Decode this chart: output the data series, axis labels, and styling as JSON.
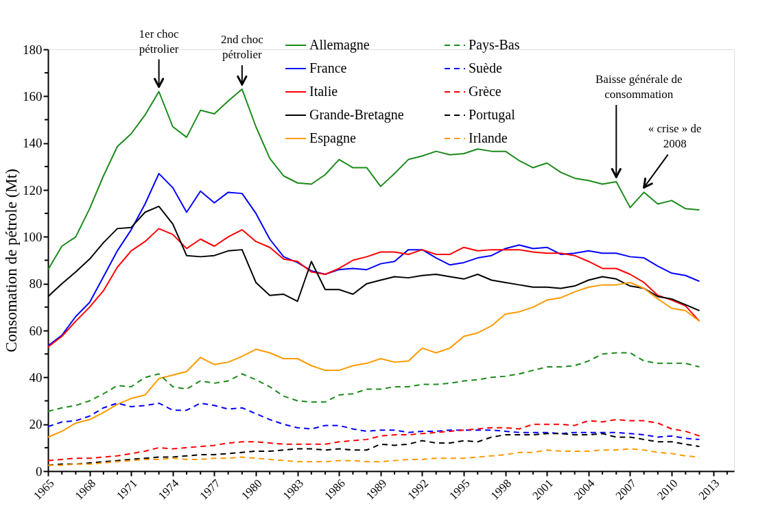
{
  "chart_data": {
    "type": "line",
    "ylabel": "Consomation de pétrole (Mt)",
    "legend": "top",
    "grid": false,
    "x": [
      1965,
      1966,
      1967,
      1968,
      1969,
      1970,
      1971,
      1972,
      1973,
      1974,
      1975,
      1976,
      1977,
      1978,
      1979,
      1980,
      1981,
      1982,
      1983,
      1984,
      1985,
      1986,
      1987,
      1988,
      1989,
      1990,
      1991,
      1992,
      1993,
      1994,
      1995,
      1996,
      1997,
      1998,
      1999,
      2000,
      2001,
      2002,
      2003,
      2004,
      2005,
      2006,
      2007,
      2008,
      2009,
      2010,
      2011,
      2012
    ],
    "xlim": [
      1965,
      2014.5
    ],
    "xticks": [
      1965,
      {
        "value": 1966,
        "label": null
      },
      {
        "value": 1967,
        "label": null
      },
      1968,
      {
        "value": 1969,
        "label": null
      },
      {
        "value": 1970,
        "label": null
      },
      1971,
      {
        "value": 1972,
        "label": null
      },
      {
        "value": 1973,
        "label": null
      },
      1974,
      {
        "value": 1975,
        "label": null
      },
      {
        "value": 1976,
        "label": null
      },
      1977,
      {
        "value": 1978,
        "label": null
      },
      {
        "value": 1979,
        "label": null
      },
      1980,
      {
        "value": 1981,
        "label": null
      },
      {
        "value": 1982,
        "label": null
      },
      1983,
      {
        "value": 1984,
        "label": null
      },
      {
        "value": 1985,
        "label": null
      },
      1986,
      {
        "value": 1987,
        "label": null
      },
      {
        "value": 1988,
        "label": null
      },
      1989,
      {
        "value": 1990,
        "label": null
      },
      {
        "value": 1991,
        "label": null
      },
      1992,
      {
        "value": 1993,
        "label": null
      },
      {
        "value": 1994,
        "label": null
      },
      1995,
      {
        "value": 1996,
        "label": null
      },
      {
        "value": 1997,
        "label": null
      },
      1998,
      {
        "value": 1999,
        "label": null
      },
      {
        "value": 2000,
        "label": null
      },
      2001,
      {
        "value": 2002,
        "label": null
      },
      {
        "value": 2003,
        "label": null
      },
      2004,
      {
        "value": 2005,
        "label": null
      },
      {
        "value": 2006,
        "label": null
      },
      2007,
      {
        "value": 2008,
        "label": null
      },
      {
        "value": 2009,
        "label": null
      },
      2010,
      {
        "value": 2011,
        "label": null
      },
      {
        "value": 2012,
        "label": null
      },
      2013,
      {
        "value": 2014,
        "label": null
      }
    ],
    "ylim": [
      0,
      180
    ],
    "yticks": [
      0,
      {
        "value": 10,
        "label": null
      },
      20,
      {
        "value": 30,
        "label": null
      },
      40,
      {
        "value": 50,
        "label": null
      },
      60,
      {
        "value": 70,
        "label": null
      },
      80,
      {
        "value": 90,
        "label": null
      },
      100,
      {
        "value": 110,
        "label": null
      },
      120,
      {
        "value": 130,
        "label": null
      },
      140,
      {
        "value": 150,
        "label": null
      },
      160,
      {
        "value": 170,
        "label": null
      },
      180
    ],
    "series": [
      {
        "name": "Allemagne",
        "color": "#1a8a1a",
        "line_style": "solid",
        "values": [
          86,
          96,
          100,
          112,
          126,
          138.5,
          144,
          152,
          162,
          147,
          142.5,
          154,
          152.5,
          158,
          163,
          147,
          133.5,
          126,
          123,
          122.5,
          126.5,
          133,
          129.5,
          129.5,
          121.5,
          127,
          133,
          134.5,
          136.5,
          135,
          135.5,
          137.5,
          136.5,
          136.5,
          132.5,
          129.5,
          131.5,
          127.5,
          125,
          124,
          122.5,
          123.5,
          112.5,
          119,
          114,
          115.5,
          112,
          111.5
        ]
      },
      {
        "name": "France",
        "color": "#0000ff",
        "line_style": "solid",
        "values": [
          53.5,
          58,
          66,
          72,
          83,
          94,
          103,
          114,
          127,
          121,
          110.5,
          119.5,
          114.5,
          119,
          118.5,
          110,
          99,
          91.5,
          89,
          85.5,
          84,
          86,
          86.5,
          86,
          88.5,
          89.5,
          94.5,
          94.5,
          91,
          88,
          89,
          91,
          92,
          95,
          96.5,
          95,
          95.5,
          92.5,
          93,
          94,
          93,
          93,
          91.5,
          91,
          87.5,
          84.5,
          83.5,
          81
        ]
      },
      {
        "name": "Italie",
        "color": "#ff0000",
        "line_style": "solid",
        "values": [
          53,
          57.5,
          64,
          70,
          77,
          87,
          94,
          98,
          103.5,
          101,
          95,
          99,
          96,
          100,
          103,
          98,
          95.5,
          90.5,
          89.5,
          85,
          84,
          86.5,
          90,
          91.5,
          93.5,
          93.5,
          92.5,
          94.5,
          92.5,
          92.5,
          95.5,
          94,
          94.5,
          94.5,
          94.5,
          93.5,
          93,
          93,
          92,
          89.5,
          86.5,
          86.5,
          84,
          80.5,
          75,
          73,
          70.5,
          64
        ]
      },
      {
        "name": "Grande-Bretagne",
        "color": "#000000",
        "line_style": "solid",
        "values": [
          74.5,
          80,
          85,
          90.5,
          97.5,
          103.5,
          104,
          110.5,
          113,
          105.5,
          92,
          91.5,
          92,
          94,
          94.5,
          80.5,
          75,
          75.5,
          72.5,
          89.5,
          77.5,
          77.5,
          75.5,
          80,
          81.5,
          83,
          82.5,
          83.5,
          84,
          83,
          82,
          84,
          81.5,
          80.5,
          79.5,
          78.5,
          78.5,
          78,
          79,
          81.5,
          83,
          82,
          79,
          78,
          74.5,
          73.5,
          71,
          68.5
        ]
      },
      {
        "name": "Espagne",
        "color": "#ff9900",
        "line_style": "solid",
        "values": [
          14.5,
          17,
          20.5,
          22,
          25,
          28.5,
          31,
          32.5,
          39.5,
          41,
          42.5,
          48.5,
          45.5,
          46.5,
          49,
          52,
          50.5,
          48,
          48,
          45,
          43,
          43,
          45,
          46,
          48,
          46.5,
          47,
          52.5,
          50.5,
          52.5,
          57.5,
          59,
          62,
          67,
          68,
          70,
          73,
          74,
          76.5,
          78.5,
          79.5,
          79.5,
          80.5,
          78,
          73.5,
          69.5,
          68.5,
          64
        ]
      },
      {
        "name": "Pays-Bas",
        "color": "#1a8a1a",
        "line_style": "dashed",
        "values": [
          25.5,
          27,
          28,
          30,
          33,
          36.5,
          36,
          40,
          41.5,
          36,
          35,
          38.5,
          37.5,
          38.5,
          41.5,
          39,
          36,
          32,
          30,
          29.5,
          29.5,
          32.5,
          33,
          35,
          35,
          36,
          36,
          37,
          37,
          37.5,
          38.5,
          39,
          40,
          40.5,
          41.5,
          43,
          44.5,
          44.5,
          45,
          47,
          50,
          50.5,
          50.5,
          47,
          46,
          46,
          46,
          44.5
        ]
      },
      {
        "name": "Suède",
        "color": "#0000ff",
        "line_style": "dashed",
        "values": [
          19,
          21,
          21.5,
          23.5,
          27,
          29,
          27.5,
          28,
          29,
          26,
          26,
          29,
          28,
          26.5,
          27,
          24.5,
          22,
          20,
          18.5,
          18,
          19.5,
          19.5,
          18,
          17,
          17.5,
          17.5,
          16.5,
          17,
          17,
          17.5,
          17.5,
          17.5,
          17.5,
          17,
          16.5,
          16.5,
          16.5,
          16,
          16.5,
          16.5,
          16.5,
          16.5,
          16,
          15.5,
          14.5,
          15,
          14,
          13.5
        ]
      },
      {
        "name": "Grèce",
        "color": "#ff0000",
        "line_style": "dashed",
        "values": [
          4.5,
          5,
          5.5,
          5.5,
          6,
          6.5,
          7.5,
          8.5,
          10,
          9.5,
          10,
          10.5,
          11,
          12,
          12.5,
          12.5,
          12,
          11.5,
          11.5,
          11.5,
          11.5,
          12.5,
          13,
          13.5,
          15,
          15.5,
          15.5,
          16,
          16.5,
          17,
          17.5,
          18,
          18.5,
          18.5,
          18,
          20,
          20,
          20,
          19.5,
          21.5,
          21,
          22,
          21.5,
          21.5,
          20.5,
          18,
          17,
          15
        ]
      },
      {
        "name": "Portugal",
        "color": "#000000",
        "line_style": "dashed",
        "values": [
          2.5,
          3,
          3,
          3.5,
          4,
          4.5,
          5,
          5.5,
          6,
          6,
          6.5,
          7,
          7,
          7.5,
          8,
          8.5,
          8.5,
          9,
          9.5,
          9.5,
          9,
          9.5,
          9,
          9,
          11.5,
          11,
          11.5,
          13,
          12,
          12,
          13,
          12.5,
          14.5,
          15.5,
          15.5,
          15.5,
          16,
          16,
          15.5,
          15.5,
          16,
          14.5,
          14.5,
          13.5,
          12.5,
          12.5,
          11.5,
          10.5
        ]
      },
      {
        "name": "Irlande",
        "color": "#ff9900",
        "line_style": "dashed",
        "values": [
          2.5,
          2.5,
          3,
          3,
          3.5,
          4,
          4.5,
          5,
          5,
          5.5,
          5,
          5,
          5.5,
          5.5,
          6,
          5.5,
          5,
          4.5,
          4,
          4,
          4,
          4.5,
          4.5,
          4,
          4,
          4.5,
          5,
          5,
          5.5,
          5.5,
          5.5,
          6,
          6.5,
          7,
          8,
          8,
          9,
          8.5,
          8.5,
          8.5,
          9,
          9,
          9.5,
          9,
          8,
          7.5,
          6.5,
          6
        ]
      }
    ],
    "annotations": [
      {
        "text": "1er choc\npétrolier",
        "x": 1973,
        "y": 162
      },
      {
        "text": "2nd choc\npétrolier",
        "x": 1979,
        "y": 163
      },
      {
        "text": "Baisse générale de\nconsommation",
        "x": 2006,
        "y": 123.5
      },
      {
        "text": "« crise » de\n2008",
        "x": 2008,
        "y": 119
      }
    ]
  }
}
